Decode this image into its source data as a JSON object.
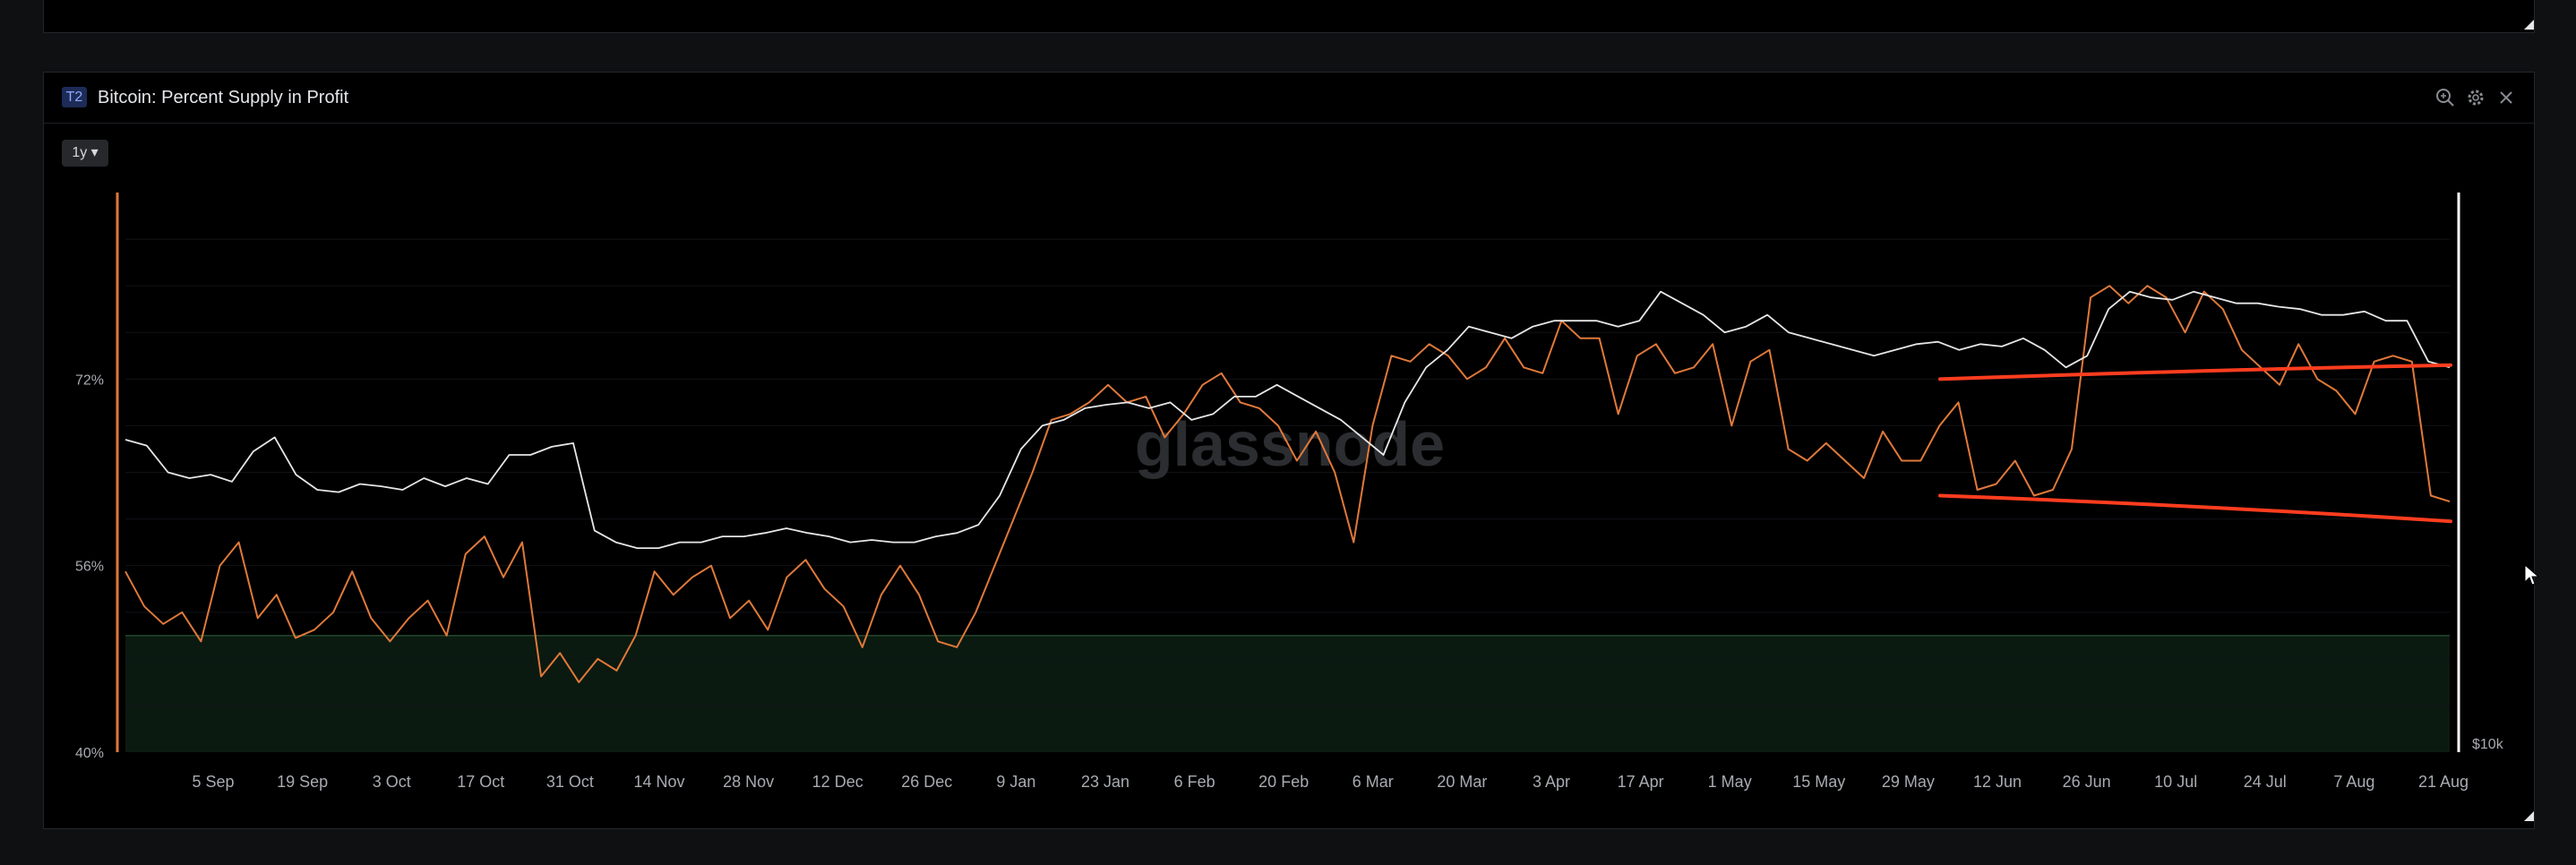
{
  "panel": {
    "badge": "T2",
    "title": "Bitcoin: Percent Supply in Profit",
    "range": "1y ▾",
    "watermark": "glassnode",
    "icons": [
      "zoom-icon",
      "settings-icon",
      "close-icon"
    ]
  },
  "chart_data": {
    "type": "line",
    "title": "Bitcoin: Percent Supply in Profit",
    "ylabel": "",
    "y_ticks": [
      "72%",
      "56%",
      "40%"
    ],
    "price_axis_label": "$10k",
    "x_ticks": [
      "5 Sep",
      "19 Sep",
      "3 Oct",
      "17 Oct",
      "31 Oct",
      "14 Nov",
      "28 Nov",
      "12 Dec",
      "26 Dec",
      "9 Jan",
      "23 Jan",
      "6 Feb",
      "20 Feb",
      "6 Mar",
      "20 Mar",
      "3 Apr",
      "17 Apr",
      "1 May",
      "15 May",
      "29 May",
      "12 Jun",
      "26 Jun",
      "10 Jul",
      "24 Jul",
      "7 Aug",
      "21 Aug"
    ],
    "ylim": [
      40,
      88
    ],
    "threshold_band": {
      "from": 40,
      "to": 50,
      "color": "#0b1a10"
    },
    "series": [
      {
        "color": "#e0793a",
        "values": [
          55.5,
          52.5,
          51.0,
          52.0,
          49.5,
          56.0,
          58.0,
          51.5,
          53.5,
          49.8,
          50.5,
          52.0,
          55.5,
          51.5,
          49.5,
          51.5,
          53.0,
          50.0,
          57.0,
          58.5,
          55.0,
          58.0,
          46.5,
          48.5,
          46.0,
          48.0,
          47.0,
          50.0,
          55.5,
          53.5,
          55.0,
          56.0,
          51.5,
          53.0,
          50.5,
          55.0,
          56.5,
          54.0,
          52.5,
          49.0,
          53.5,
          56.0,
          53.5,
          49.5,
          49.0,
          52.0,
          56.0,
          60.0,
          64.0,
          68.5,
          69.0,
          70.0,
          71.5,
          70.0,
          70.5,
          67.0,
          69.0,
          71.5,
          72.5,
          70.0,
          69.5,
          68.0,
          65.0,
          67.5,
          64.0,
          58.0,
          68.0,
          74.0,
          73.5,
          75.0,
          74.0,
          72.0,
          73.0,
          75.5,
          73.0,
          72.5,
          77.0,
          75.5,
          75.5,
          69.0,
          74.0,
          75.0,
          72.5,
          73.0,
          75.0,
          68.0,
          73.5,
          74.5,
          66.0,
          65.0,
          66.5,
          65.0,
          63.5,
          67.5,
          65.0,
          65.0,
          68.0,
          70.0,
          62.5,
          63.0,
          65.0,
          62.0,
          62.5,
          66.0,
          79.0,
          80.0,
          78.5,
          80.0,
          79.0,
          76.0,
          79.5,
          78.0,
          74.5,
          73.0,
          71.5,
          75.0,
          72.0,
          71.0,
          69.0,
          73.5,
          74.0,
          73.5,
          62.0,
          61.5
        ]
      },
      {
        "color": "#e6e6e6",
        "values": [
          66.8,
          66.3,
          64.0,
          63.5,
          63.8,
          63.2,
          65.8,
          67.0,
          63.8,
          62.5,
          62.3,
          63.0,
          62.8,
          62.5,
          63.5,
          62.8,
          63.5,
          63.0,
          65.5,
          65.5,
          66.2,
          66.5,
          59.0,
          58.0,
          57.5,
          57.5,
          58.0,
          58.0,
          58.5,
          58.5,
          58.8,
          59.2,
          58.8,
          58.5,
          58.0,
          58.2,
          58.0,
          58.0,
          58.5,
          58.8,
          59.5,
          62.0,
          66.0,
          68.0,
          68.5,
          69.5,
          69.8,
          70.0,
          69.5,
          70.0,
          68.5,
          69.0,
          70.5,
          70.5,
          71.5,
          70.5,
          69.5,
          68.5,
          67.0,
          65.5,
          70.0,
          73.0,
          74.5,
          76.5,
          76.0,
          75.5,
          76.5,
          77.0,
          77.0,
          77.0,
          76.5,
          77.0,
          79.5,
          78.5,
          77.5,
          76.0,
          76.5,
          77.5,
          76.0,
          75.5,
          75.0,
          74.5,
          74.0,
          74.5,
          75.0,
          75.2,
          74.5,
          75.0,
          74.8,
          75.5,
          74.5,
          73.0,
          74.0,
          78.0,
          79.5,
          79.0,
          78.8,
          79.5,
          79.0,
          78.5,
          78.5,
          78.2,
          78.0,
          77.5,
          77.5,
          77.8,
          77.0,
          77.0,
          73.5,
          73.0
        ]
      }
    ],
    "annotations": [
      {
        "type": "trendline",
        "color": "#ff3d1f",
        "x": [
          "3 Jun",
          "21 Aug"
        ],
        "y": [
          72.0,
          73.2
        ]
      },
      {
        "type": "trendline",
        "color": "#ff3d1f",
        "x": [
          "3 Jun",
          "21 Aug"
        ],
        "y": [
          62.0,
          59.8
        ]
      }
    ],
    "grid": true,
    "legend": "none"
  }
}
